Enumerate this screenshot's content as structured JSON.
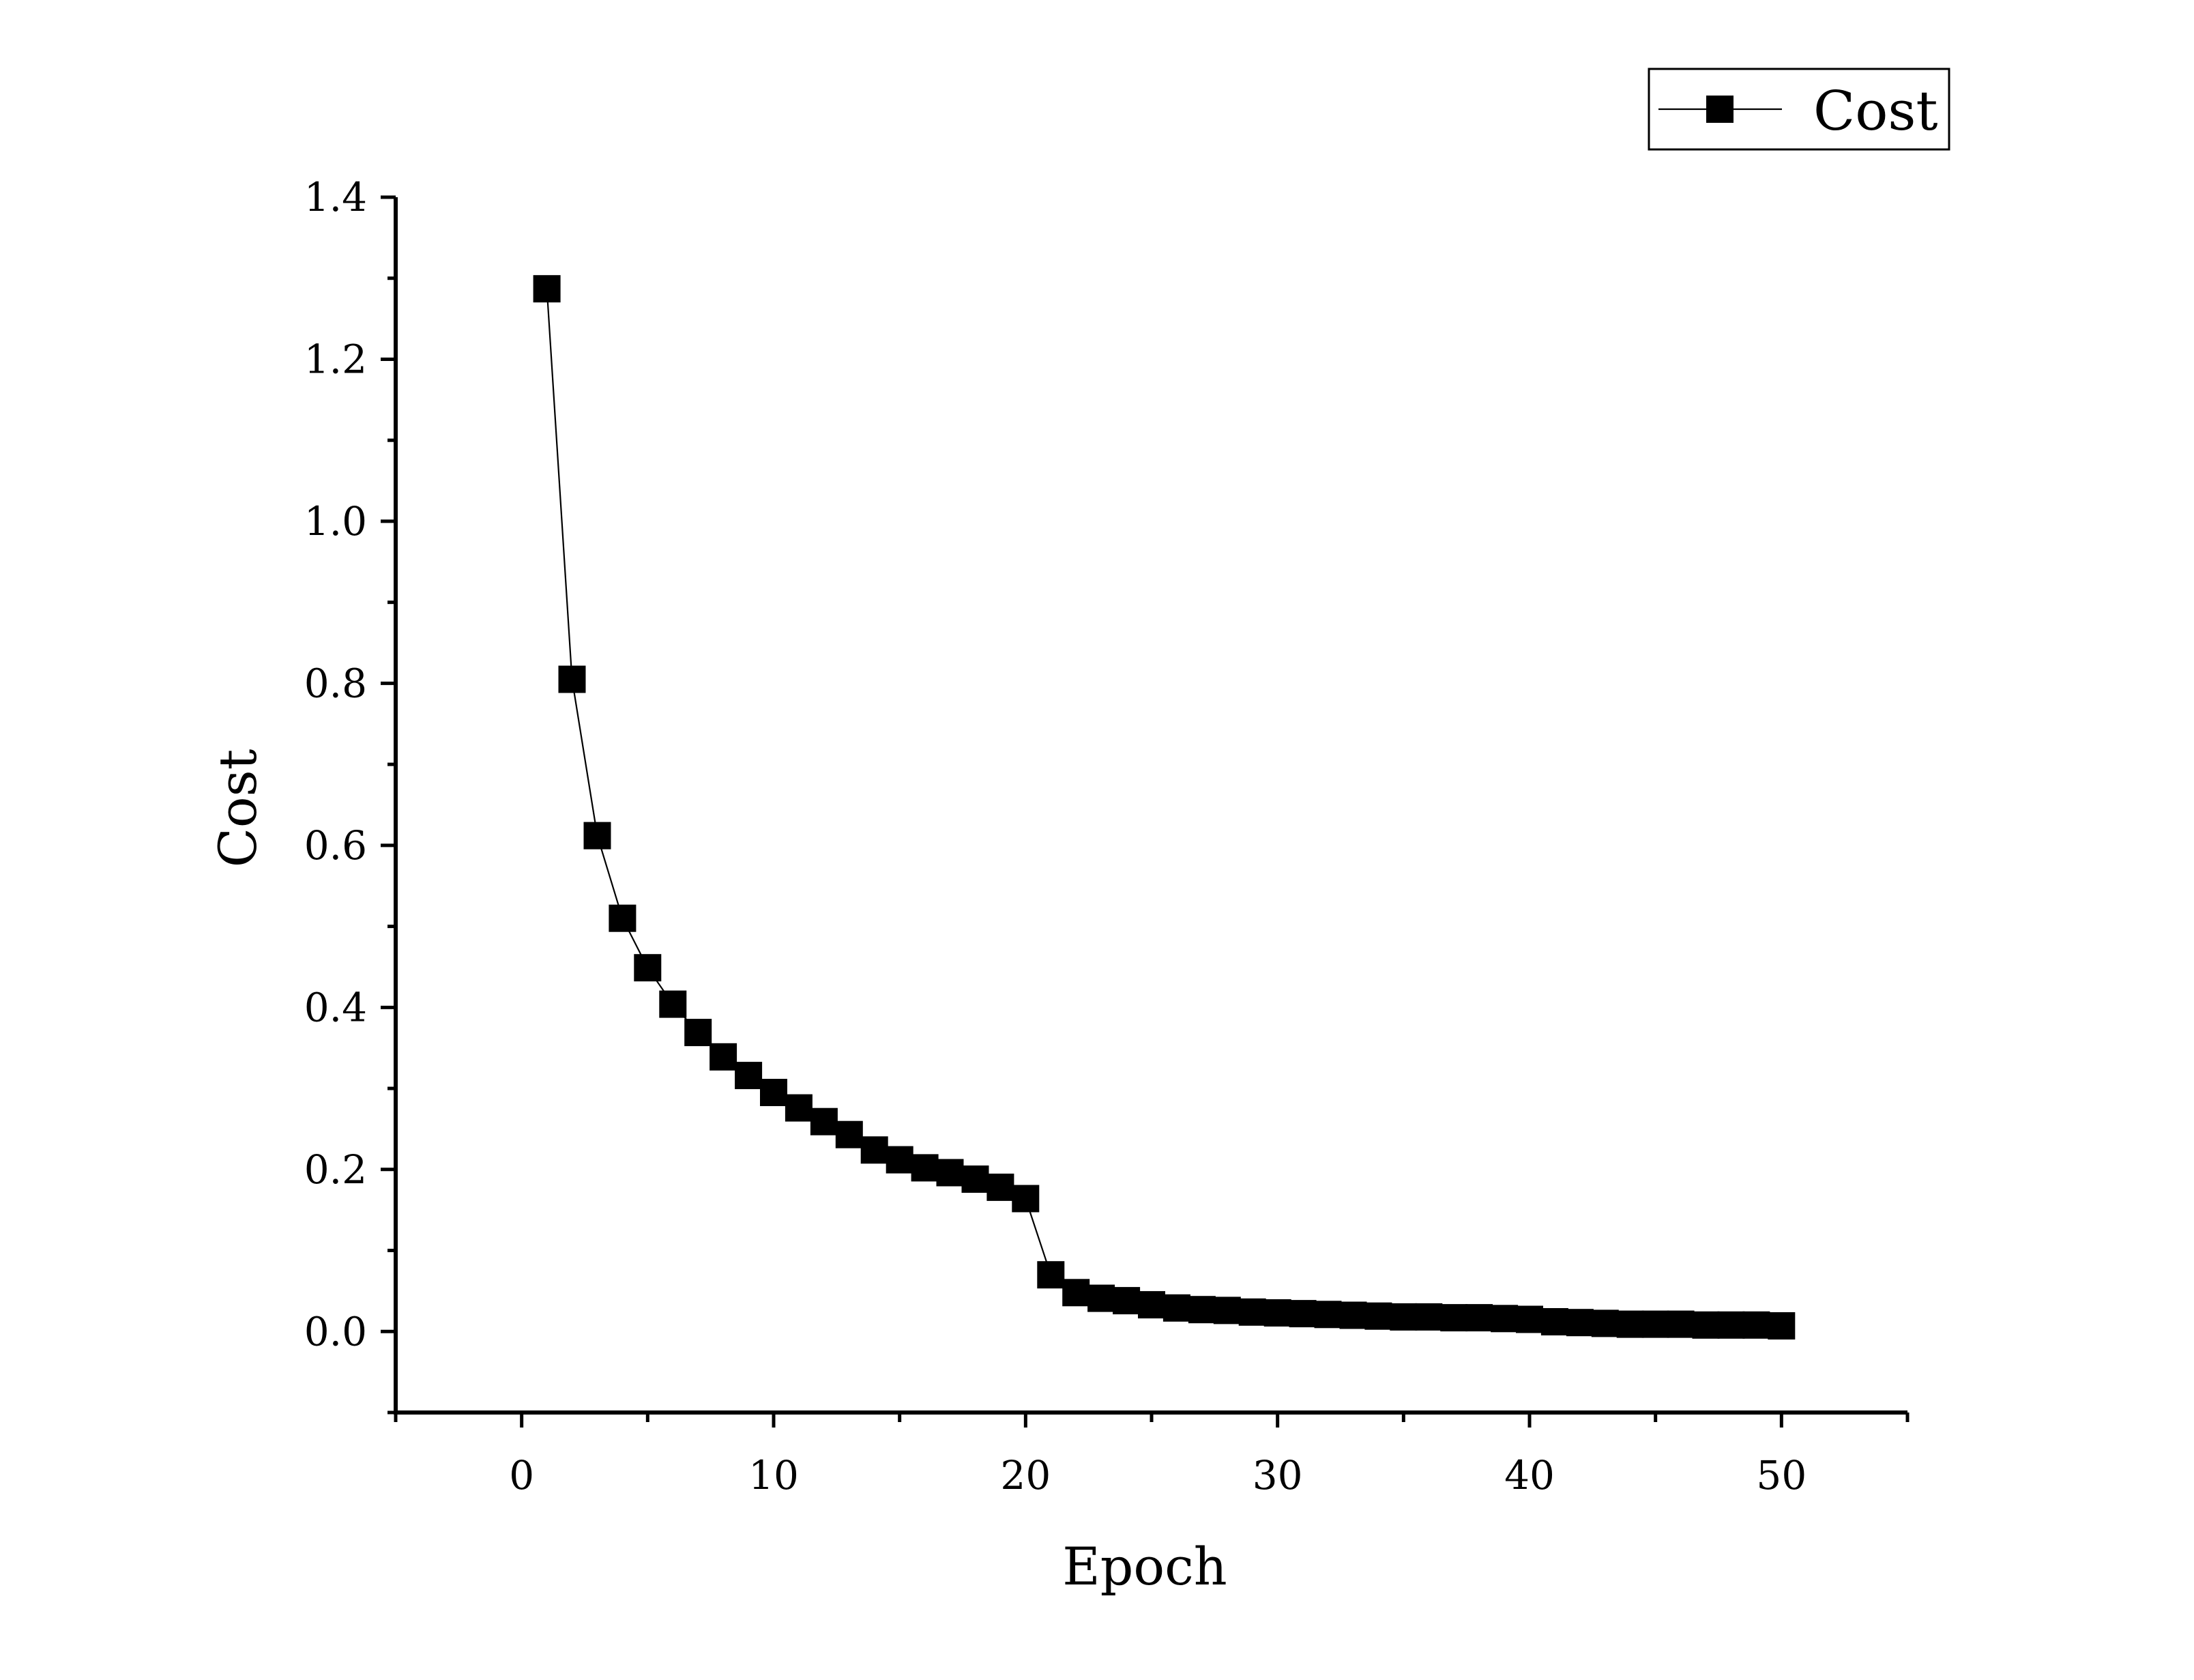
{
  "chart_data": {
    "type": "line",
    "title": "",
    "xlabel": "Epoch",
    "ylabel": "Cost",
    "xlim": [
      -5,
      55
    ],
    "ylim": [
      -0.1,
      1.4
    ],
    "xticks": [
      0,
      10,
      20,
      30,
      40,
      50
    ],
    "xtick_labels": [
      "0",
      "10",
      "20",
      "30",
      "40",
      "50"
    ],
    "yticks": [
      0.0,
      0.2,
      0.4,
      0.6,
      0.8,
      1.0,
      1.2,
      1.4
    ],
    "ytick_labels": [
      "0.0",
      "0.2",
      "0.4",
      "0.6",
      "0.8",
      "1.0",
      "1.2",
      "1.4"
    ],
    "grid": false,
    "legend_position": "top-right",
    "marker": "square",
    "series": [
      {
        "name": "Cost",
        "color": "#000000",
        "x": [
          1,
          2,
          3,
          4,
          5,
          6,
          7,
          8,
          9,
          10,
          11,
          12,
          13,
          14,
          15,
          16,
          17,
          18,
          19,
          20,
          21,
          22,
          23,
          24,
          25,
          26,
          27,
          28,
          29,
          30,
          31,
          32,
          33,
          34,
          35,
          36,
          37,
          38,
          39,
          40,
          41,
          42,
          43,
          44,
          45,
          46,
          47,
          48,
          49,
          50
        ],
        "y": [
          1.287,
          0.805,
          0.612,
          0.51,
          0.449,
          0.404,
          0.369,
          0.339,
          0.316,
          0.295,
          0.276,
          0.259,
          0.243,
          0.224,
          0.212,
          0.202,
          0.196,
          0.188,
          0.178,
          0.164,
          0.07,
          0.048,
          0.041,
          0.038,
          0.033,
          0.029,
          0.027,
          0.026,
          0.024,
          0.023,
          0.022,
          0.021,
          0.02,
          0.019,
          0.018,
          0.018,
          0.017,
          0.017,
          0.016,
          0.015,
          0.012,
          0.011,
          0.01,
          0.009,
          0.009,
          0.009,
          0.008,
          0.008,
          0.008,
          0.007
        ]
      }
    ]
  }
}
